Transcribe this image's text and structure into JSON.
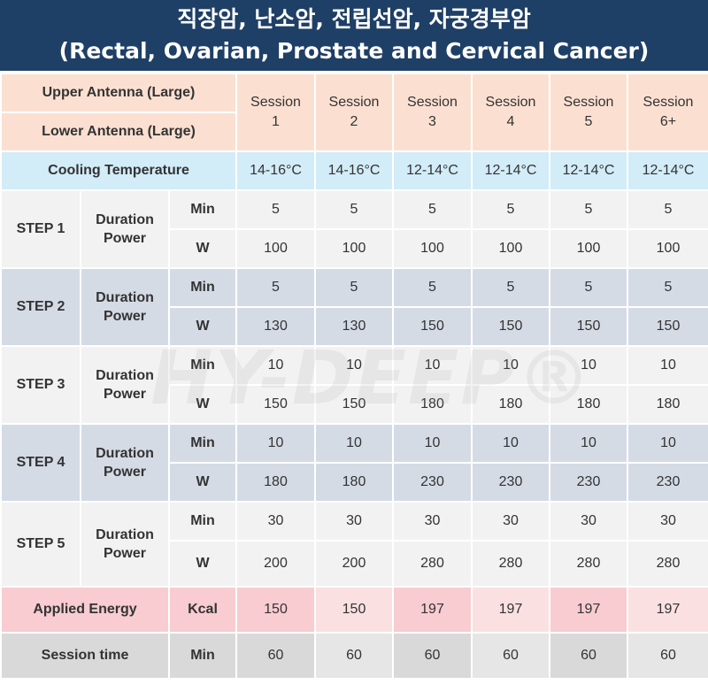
{
  "title": {
    "korean": "직장암, 난소암, 전립선암, 자궁경부암",
    "english": "(Rectal, Ovarian, Prostate and Cervical Cancer)"
  },
  "watermark": "HY-DEEP®",
  "header_rows": {
    "upper_antenna": "Upper Antenna (Large)",
    "lower_antenna": "Lower Antenna (Large)",
    "sessions": [
      {
        "line1": "Session",
        "line2": "1"
      },
      {
        "line1": "Session",
        "line2": "2"
      },
      {
        "line1": "Session",
        "line2": "3"
      },
      {
        "line1": "Session",
        "line2": "4"
      },
      {
        "line1": "Session",
        "line2": "5"
      },
      {
        "line1": "Session",
        "line2": "6+"
      }
    ]
  },
  "cooling": {
    "label": "Cooling Temperature",
    "values": [
      "14-16°C",
      "14-16°C",
      "12-14°C",
      "12-14°C",
      "12-14°C",
      "12-14°C"
    ]
  },
  "steps": [
    {
      "label": "STEP 1",
      "duration_label": "Duration",
      "power_label": "Power",
      "min_unit": "Min",
      "w_unit": "W",
      "min": [
        "5",
        "5",
        "5",
        "5",
        "5",
        "5"
      ],
      "w": [
        "100",
        "100",
        "100",
        "100",
        "100",
        "100"
      ]
    },
    {
      "label": "STEP 2",
      "duration_label": "Duration",
      "power_label": "Power",
      "min_unit": "Min",
      "w_unit": "W",
      "min": [
        "5",
        "5",
        "5",
        "5",
        "5",
        "5"
      ],
      "w": [
        "130",
        "130",
        "150",
        "150",
        "150",
        "150"
      ]
    },
    {
      "label": "STEP 3",
      "duration_label": "Duration",
      "power_label": "Power",
      "min_unit": "Min",
      "w_unit": "W",
      "min": [
        "10",
        "10",
        "10",
        "10",
        "10",
        "10"
      ],
      "w": [
        "150",
        "150",
        "180",
        "180",
        "180",
        "180"
      ]
    },
    {
      "label": "STEP 4",
      "duration_label": "Duration",
      "power_label": "Power",
      "min_unit": "Min",
      "w_unit": "W",
      "min": [
        "10",
        "10",
        "10",
        "10",
        "10",
        "10"
      ],
      "w": [
        "180",
        "180",
        "230",
        "230",
        "230",
        "230"
      ]
    },
    {
      "label": "STEP 5",
      "duration_label": "Duration",
      "power_label": "Power",
      "min_unit": "Min",
      "w_unit": "W",
      "min": [
        "30",
        "30",
        "30",
        "30",
        "30",
        "30"
      ],
      "w": [
        "200",
        "200",
        "280",
        "280",
        "280",
        "280"
      ]
    }
  ],
  "energy": {
    "label": "Applied Energy",
    "unit": "Kcal",
    "values": [
      "150",
      "150",
      "197",
      "197",
      "197",
      "197"
    ]
  },
  "session_time": {
    "label": "Session time",
    "unit": "Min",
    "values": [
      "60",
      "60",
      "60",
      "60",
      "60",
      "60"
    ]
  },
  "colors": {
    "header_bg": "#1e3f66",
    "peach": "#fbe0d2",
    "cooling": "#d2ecf8",
    "step_light": "#f2f2f2",
    "step_blue": "#d5dbe5",
    "energy": "#f8ccd0",
    "session_time": "#d9d9d9"
  }
}
